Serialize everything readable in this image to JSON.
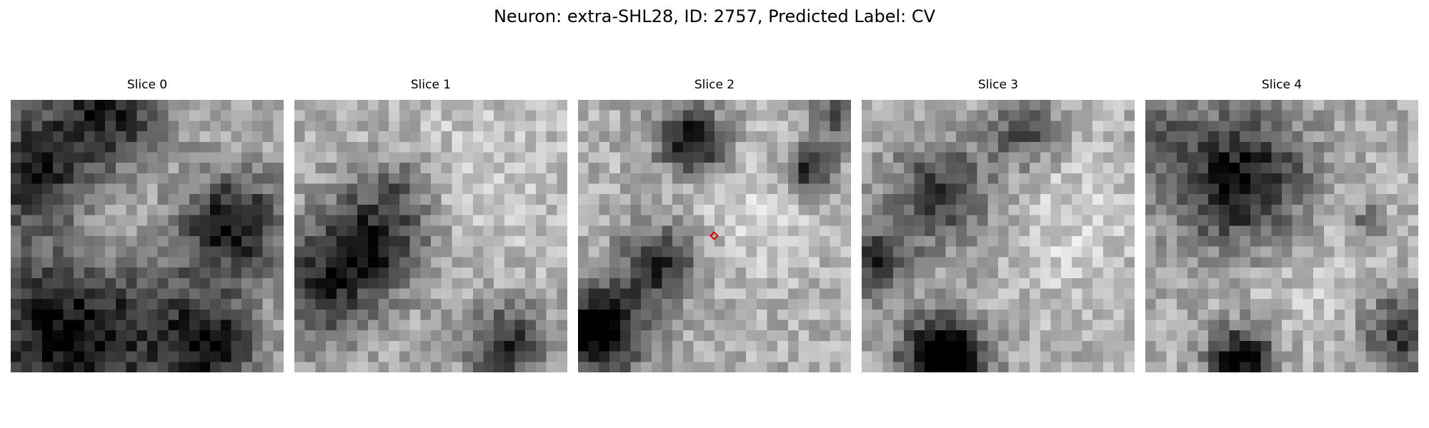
{
  "figure": {
    "title": "Neuron: extra-SHL28, ID: 2757, Predicted Label: CV",
    "marker_color": "#e00000",
    "colormap": "gray",
    "grid_size": 26,
    "panels": [
      {
        "title": "Slice 0",
        "seed": 11,
        "blobs": [
          [
            0.05,
            0.28,
            0.22,
            0.55
          ],
          [
            0.35,
            0.05,
            0.22,
            0.55
          ],
          [
            0.82,
            0.45,
            0.18,
            0.6
          ],
          [
            0.45,
            0.82,
            0.35,
            0.5
          ],
          [
            0.1,
            0.85,
            0.25,
            0.45
          ],
          [
            0.75,
            0.9,
            0.15,
            0.45
          ]
        ],
        "light": [
          [
            0.4,
            0.5,
            0.3,
            0.35
          ]
        ]
      },
      {
        "title": "Slice 1",
        "seed": 23,
        "blobs": [
          [
            0.3,
            0.5,
            0.2,
            0.55
          ],
          [
            0.1,
            0.7,
            0.2,
            0.45
          ],
          [
            0.78,
            0.9,
            0.15,
            0.5
          ],
          [
            0.4,
            0.3,
            0.1,
            0.2
          ]
        ],
        "light": [
          [
            0.7,
            0.3,
            0.35,
            0.3
          ]
        ]
      },
      {
        "title": "Slice 2",
        "seed": 37,
        "blobs": [
          [
            0.42,
            0.15,
            0.12,
            0.7
          ],
          [
            0.85,
            0.25,
            0.09,
            0.6
          ],
          [
            0.3,
            0.6,
            0.14,
            0.55
          ],
          [
            0.08,
            0.85,
            0.16,
            0.8
          ],
          [
            0.95,
            0.05,
            0.1,
            0.4
          ]
        ],
        "light": [
          [
            0.65,
            0.4,
            0.3,
            0.3
          ]
        ],
        "marker": [
          0.5,
          0.5
        ]
      },
      {
        "title": "Slice 3",
        "seed": 51,
        "blobs": [
          [
            0.3,
            0.95,
            0.15,
            0.9
          ],
          [
            0.05,
            0.6,
            0.12,
            0.5
          ],
          [
            0.3,
            0.35,
            0.2,
            0.45
          ],
          [
            0.6,
            0.12,
            0.12,
            0.4
          ]
        ],
        "light": [
          [
            0.75,
            0.45,
            0.3,
            0.35
          ]
        ]
      },
      {
        "title": "Slice 4",
        "seed": 67,
        "blobs": [
          [
            0.35,
            0.3,
            0.25,
            0.65
          ],
          [
            0.05,
            0.15,
            0.12,
            0.3
          ],
          [
            0.35,
            0.95,
            0.12,
            0.7
          ],
          [
            0.95,
            0.85,
            0.15,
            0.5
          ],
          [
            0.82,
            0.45,
            0.06,
            0.35
          ]
        ],
        "light": [
          [
            0.6,
            0.6,
            0.3,
            0.3
          ]
        ]
      }
    ]
  }
}
